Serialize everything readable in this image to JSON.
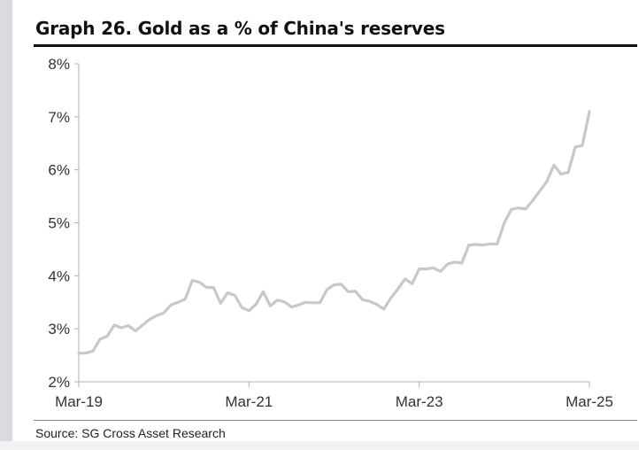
{
  "title": "Graph 26. Gold as a % of China's reserves",
  "source": "Source: SG Cross Asset Research",
  "colors": {
    "line": "#c8c8c8",
    "axis": "#b0b0b0",
    "title_rule": "#111111"
  },
  "chart_data": {
    "type": "line",
    "title": "Graph 26. Gold as a % of China's reserves",
    "xlabel": "",
    "ylabel": "",
    "grid": false,
    "legend": "none",
    "ylim": [
      2,
      8
    ],
    "y_ticks": [
      2,
      3,
      4,
      5,
      6,
      7,
      8
    ],
    "y_tick_labels": [
      "2%",
      "3%",
      "4%",
      "5%",
      "6%",
      "7%",
      "8%"
    ],
    "x_ticks": [
      "Mar-19",
      "Mar-21",
      "Mar-23",
      "Mar-25"
    ],
    "x_range": [
      "Mar-19",
      "Mar-25"
    ],
    "series": [
      {
        "name": "",
        "x": [
          "Mar-19",
          "Apr-19",
          "May-19",
          "Jun-19",
          "Jul-19",
          "Aug-19",
          "Sep-19",
          "Oct-19",
          "Nov-19",
          "Dec-19",
          "Jan-20",
          "Feb-20",
          "Mar-20",
          "Apr-20",
          "May-20",
          "Jun-20",
          "Jul-20",
          "Aug-20",
          "Sep-20",
          "Oct-20",
          "Nov-20",
          "Dec-20",
          "Jan-21",
          "Feb-21",
          "Mar-21",
          "Apr-21",
          "May-21",
          "Jun-21",
          "Jul-21",
          "Aug-21",
          "Sep-21",
          "Oct-21",
          "Nov-21",
          "Dec-21",
          "Jan-22",
          "Feb-22",
          "Mar-22",
          "Apr-22",
          "May-22",
          "Jun-22",
          "Jul-22",
          "Aug-22",
          "Sep-22",
          "Oct-22",
          "Nov-22",
          "Dec-22",
          "Jan-23",
          "Feb-23",
          "Mar-23",
          "Apr-23",
          "May-23",
          "Jun-23",
          "Jul-23",
          "Aug-23",
          "Sep-23",
          "Oct-23",
          "Nov-23",
          "Dec-23",
          "Jan-24",
          "Feb-24",
          "Mar-24",
          "Apr-24",
          "May-24",
          "Jun-24",
          "Jul-24",
          "Aug-24",
          "Sep-24",
          "Oct-24",
          "Nov-24",
          "Dec-24",
          "Jan-25",
          "Feb-25",
          "Mar-25"
        ],
        "values": [
          2.54,
          2.54,
          2.58,
          2.8,
          2.86,
          3.07,
          3.02,
          3.06,
          2.96,
          3.07,
          3.18,
          3.25,
          3.3,
          3.45,
          3.5,
          3.56,
          3.91,
          3.88,
          3.78,
          3.78,
          3.48,
          3.68,
          3.63,
          3.4,
          3.34,
          3.46,
          3.7,
          3.43,
          3.54,
          3.51,
          3.41,
          3.45,
          3.5,
          3.49,
          3.49,
          3.74,
          3.83,
          3.84,
          3.7,
          3.71,
          3.55,
          3.52,
          3.46,
          3.37,
          3.58,
          3.75,
          3.94,
          3.85,
          4.13,
          4.13,
          4.15,
          4.08,
          4.22,
          4.26,
          4.24,
          4.58,
          4.59,
          4.58,
          4.6,
          4.6,
          5.0,
          5.25,
          5.28,
          5.26,
          5.42,
          5.6,
          5.78,
          6.09,
          5.92,
          5.95,
          6.43,
          6.46,
          7.1
        ]
      }
    ]
  }
}
